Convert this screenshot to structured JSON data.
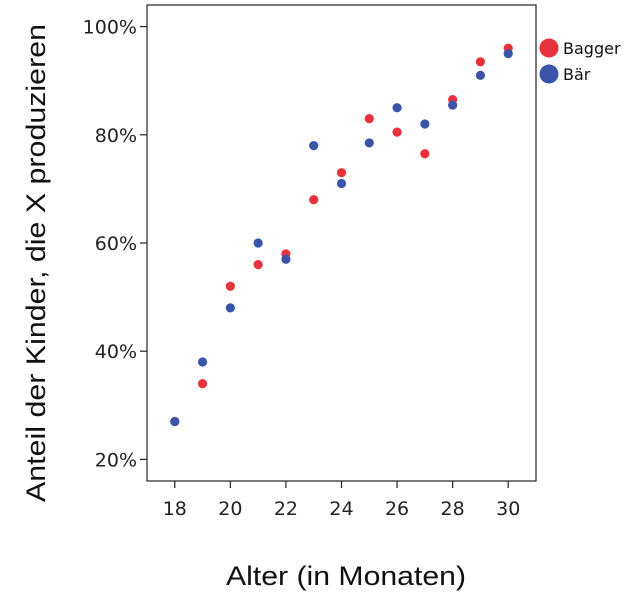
{
  "chart_data": {
    "type": "scatter",
    "xlabel": "Alter (in Monaten)",
    "ylabel": "Anteil der Kinder, die X  produzieren",
    "xlim": [
      17,
      31
    ],
    "ylim": [
      16,
      104
    ],
    "x_ticks": [
      18,
      20,
      22,
      24,
      26,
      28,
      30
    ],
    "y_ticks": [
      20,
      40,
      60,
      80,
      100
    ],
    "x_tick_labels": [
      "18",
      "20",
      "22",
      "24",
      "26",
      "28",
      "30"
    ],
    "y_tick_labels": [
      "20%",
      "40%",
      "60%",
      "80%",
      "100%"
    ],
    "y_unit": "percent",
    "grid": false,
    "legend_position": "right-top",
    "series": [
      {
        "name": "Bagger",
        "color": "#e8323b",
        "points": [
          {
            "x": 18,
            "y": 27
          },
          {
            "x": 19,
            "y": 34
          },
          {
            "x": 20,
            "y": 52
          },
          {
            "x": 21,
            "y": 56
          },
          {
            "x": 22,
            "y": 58
          },
          {
            "x": 23,
            "y": 68
          },
          {
            "x": 24,
            "y": 73
          },
          {
            "x": 25,
            "y": 83
          },
          {
            "x": 26,
            "y": 80.5
          },
          {
            "x": 27,
            "y": 76.5
          },
          {
            "x": 28,
            "y": 86.5
          },
          {
            "x": 29,
            "y": 93.5
          },
          {
            "x": 30,
            "y": 96
          }
        ]
      },
      {
        "name": "Bär",
        "color": "#3a54a8",
        "points": [
          {
            "x": 18,
            "y": 27
          },
          {
            "x": 19,
            "y": 38
          },
          {
            "x": 20,
            "y": 48
          },
          {
            "x": 21,
            "y": 60
          },
          {
            "x": 22,
            "y": 57
          },
          {
            "x": 23,
            "y": 78
          },
          {
            "x": 24,
            "y": 71
          },
          {
            "x": 25,
            "y": 78.5
          },
          {
            "x": 26,
            "y": 85
          },
          {
            "x": 27,
            "y": 82
          },
          {
            "x": 28,
            "y": 85.5
          },
          {
            "x": 29,
            "y": 91
          },
          {
            "x": 30,
            "y": 95
          }
        ]
      }
    ]
  }
}
